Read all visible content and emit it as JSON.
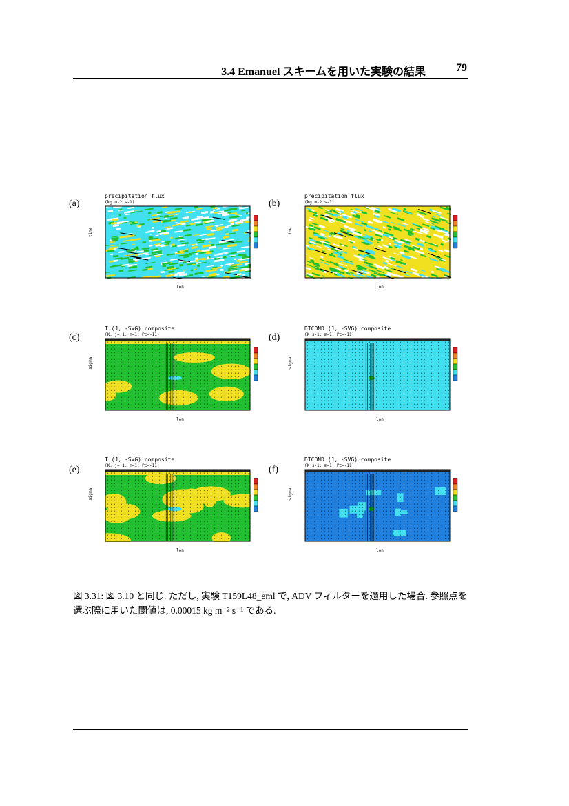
{
  "header": {
    "title": "3.4   Emanuel スキームを用いた実験の結果",
    "page_number": "79"
  },
  "figure": {
    "panels": [
      {
        "letter": "(a)",
        "title": "precipitation flux",
        "subtitle": "(kg m-2 s-1)",
        "ylabel": "time",
        "xlabel": "lon",
        "type": "hovmoller"
      },
      {
        "letter": "(b)",
        "title": "precipitation flux",
        "subtitle": "(kg m-2 s-1)",
        "ylabel": "time",
        "xlabel": "lon",
        "type": "hovmoller"
      },
      {
        "letter": "(c)",
        "title": "T (J, -SVG) composite",
        "subtitle": "(K, j= 1, m=1, Pc=-11)",
        "ylabel": "sigma",
        "xlabel": "lon",
        "type": "section"
      },
      {
        "letter": "(d)",
        "title": "DTCOND (J, -SVG) composite",
        "subtitle": "(K s-1, m=1, Pc=-11)",
        "ylabel": "sigma",
        "xlabel": "lon",
        "type": "section"
      },
      {
        "letter": "(e)",
        "title": "T (J, -SVG) composite",
        "subtitle": "(K, j= 1, m=1, Pc=-11)",
        "ylabel": "sigma",
        "xlabel": "lon",
        "type": "section"
      },
      {
        "letter": "(f)",
        "title": "DTCOND (J, -SVG) composite",
        "subtitle": "(K s-1, m=1, Pc=-11)",
        "ylabel": "sigma",
        "xlabel": "lon",
        "type": "section"
      }
    ],
    "colors": {
      "cyan": "#40e0f0",
      "green": "#20c030",
      "yellow": "#f0e020",
      "blue": "#2080e0",
      "orange": "#f08020",
      "red": "#e02020"
    }
  },
  "caption": {
    "text": "図 3.31: 図 3.10 と同じ. ただし, 実験 T159L48_eml で, ADV フィルターを適用した場合. 参照点を選ぶ際に用いた閾値は, 0.00015 kg m⁻² s⁻¹ である."
  }
}
